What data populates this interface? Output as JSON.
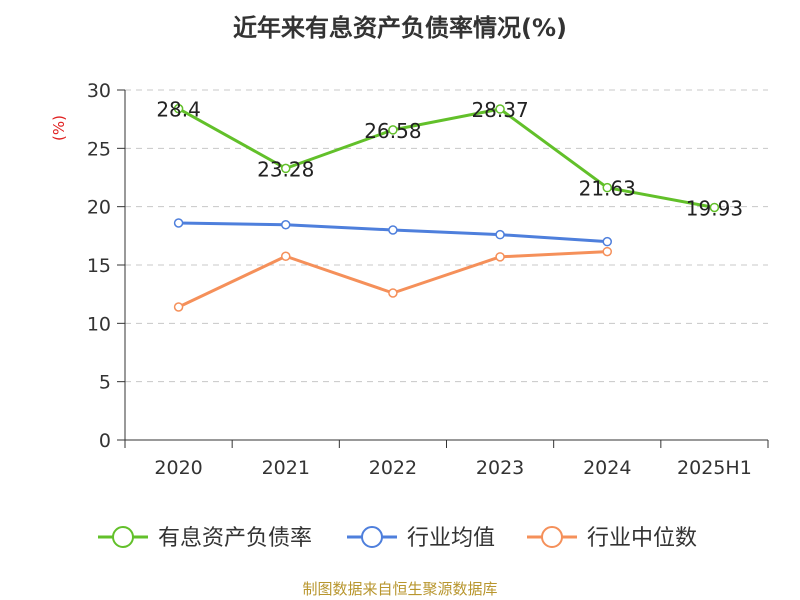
{
  "chart_data": {
    "type": "line",
    "title": "近年来有息资产负债率情况(%)",
    "ylabel": "(%)",
    "xlabel": "",
    "categories": [
      "2020",
      "2021",
      "2022",
      "2023",
      "2024",
      "2025H1"
    ],
    "ylim": [
      0,
      30
    ],
    "yticks": [
      0,
      5,
      10,
      15,
      20,
      25,
      30
    ],
    "grid": true,
    "legend_position": "bottom",
    "series": [
      {
        "name": "有息资产负债率",
        "color": "#62c02a",
        "values": [
          28.4,
          23.28,
          26.58,
          28.37,
          21.63,
          19.93
        ],
        "data_labels": [
          "28.4",
          "23.28",
          "26.58",
          "28.37",
          "21.63",
          "19.93"
        ]
      },
      {
        "name": "行业均值",
        "color": "#4e7fdc",
        "values": [
          18.6,
          18.45,
          18.0,
          17.6,
          17.0,
          null
        ]
      },
      {
        "name": "行业中位数",
        "color": "#f5905a",
        "values": [
          11.4,
          15.75,
          12.6,
          15.7,
          16.15,
          null
        ]
      }
    ]
  },
  "footer": "制图数据来自恒生聚源数据库"
}
